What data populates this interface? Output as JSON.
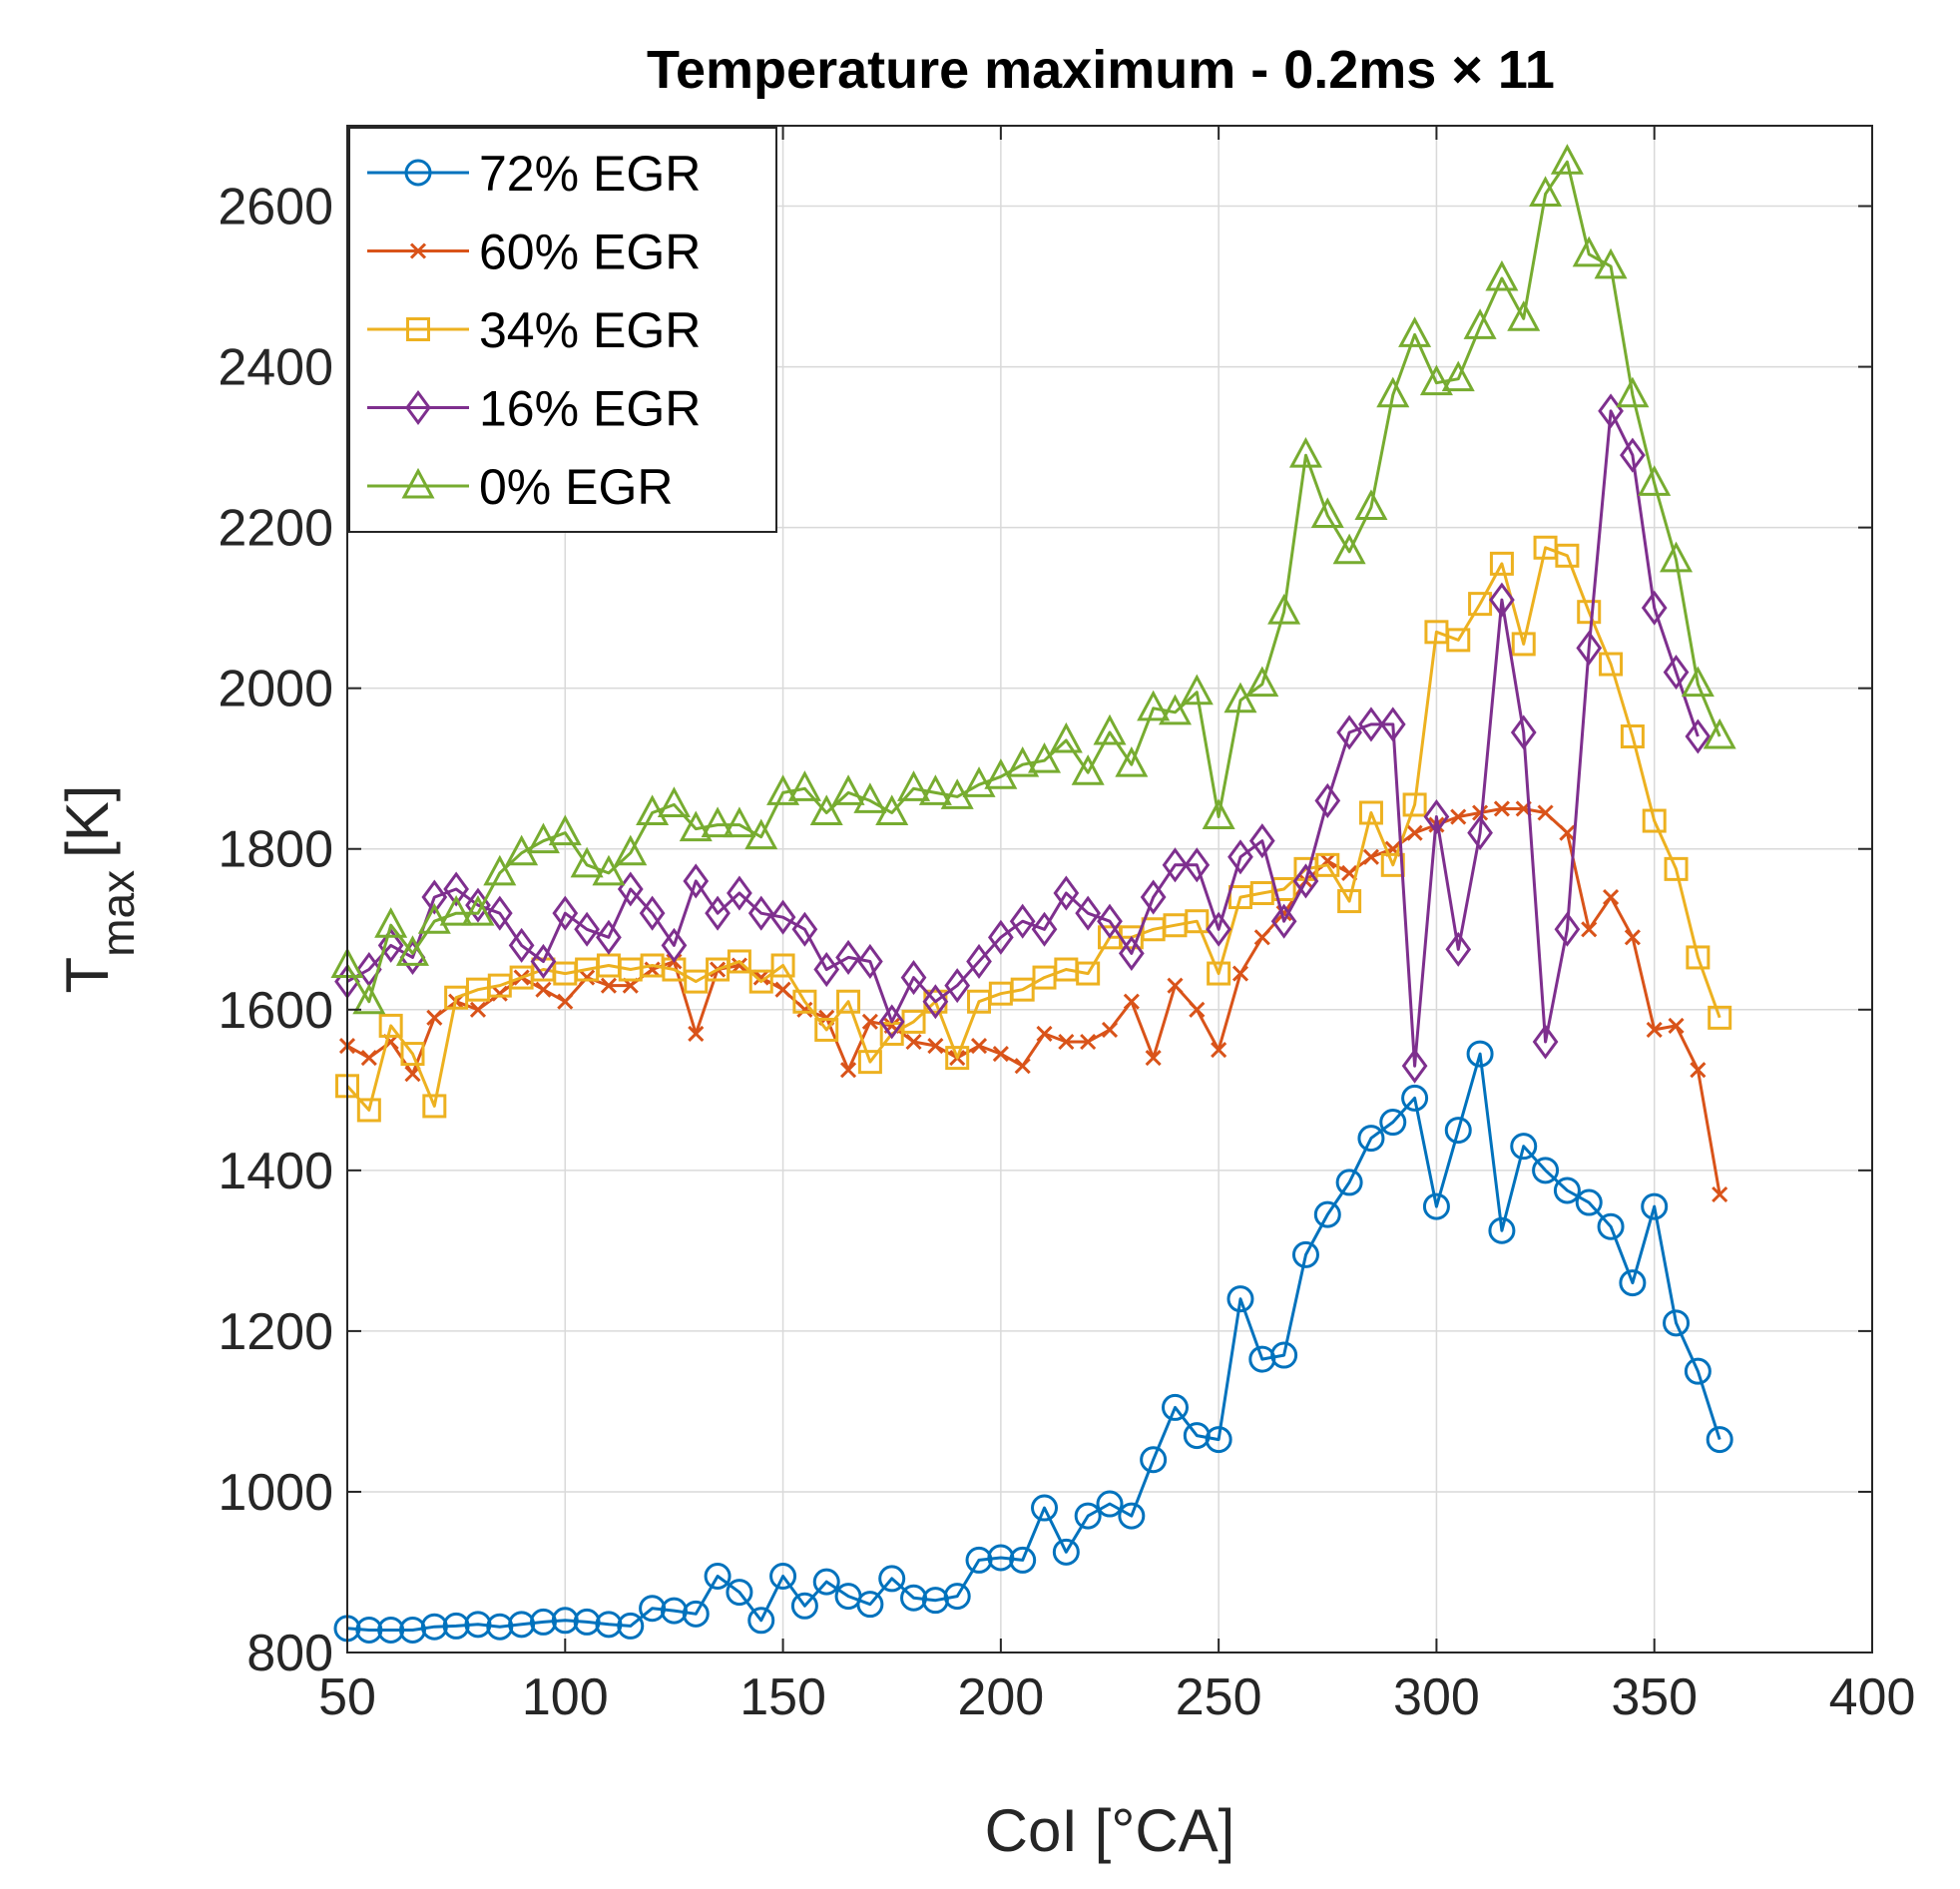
{
  "chart_data": {
    "type": "line",
    "title": "Temperature maximum - 0.2ms × 11",
    "xlabel": "CoI [°CA]",
    "ylabel_main": "T",
    "ylabel_sub": "max",
    "ylabel_unit": "[K]",
    "xlim": [
      50,
      400
    ],
    "ylim": [
      800,
      2700
    ],
    "xticks": [
      50,
      100,
      150,
      200,
      250,
      300,
      350,
      400
    ],
    "yticks": [
      800,
      1000,
      1200,
      1400,
      1600,
      1800,
      2000,
      2200,
      2400,
      2600
    ],
    "grid": true,
    "legend_location": "top-left",
    "x": [
      50,
      55,
      60,
      65,
      70,
      75,
      80,
      85,
      90,
      95,
      100,
      105,
      110,
      115,
      120,
      125,
      130,
      135,
      140,
      145,
      150,
      155,
      160,
      165,
      170,
      175,
      180,
      185,
      190,
      195,
      200,
      205,
      210,
      215,
      220,
      225,
      230,
      235,
      240,
      245,
      250,
      255,
      260,
      265,
      270,
      275,
      280,
      285,
      290,
      295,
      300,
      305,
      310,
      315,
      320,
      325,
      330,
      335,
      340,
      345,
      350,
      355,
      360,
      365
    ],
    "series": [
      {
        "name": "72% EGR",
        "color": "#0072BD",
        "marker": "circle",
        "values": [
          830,
          828,
          828,
          828,
          832,
          833,
          835,
          832,
          835,
          838,
          840,
          838,
          835,
          833,
          855,
          852,
          848,
          895,
          875,
          840,
          895,
          858,
          888,
          870,
          860,
          892,
          868,
          865,
          870,
          915,
          918,
          915,
          980,
          925,
          970,
          985,
          970,
          1040,
          1105,
          1070,
          1065,
          1240,
          1165,
          1170,
          1295,
          1345,
          1385,
          1440,
          1460,
          1490,
          1355,
          1450,
          1545,
          1325,
          1430,
          1400,
          1375,
          1360,
          1330,
          1260,
          1355,
          1210,
          1150,
          1065
        ]
      },
      {
        "name": "60% EGR",
        "color": "#D95319",
        "marker": "x",
        "values": [
          1555,
          1540,
          1560,
          1520,
          1590,
          1610,
          1600,
          1620,
          1640,
          1625,
          1610,
          1640,
          1630,
          1630,
          1650,
          1660,
          1570,
          1650,
          1655,
          1640,
          1625,
          1600,
          1590,
          1525,
          1585,
          1580,
          1560,
          1555,
          1540,
          1555,
          1545,
          1530,
          1570,
          1560,
          1560,
          1575,
          1610,
          1540,
          1630,
          1600,
          1550,
          1645,
          1690,
          1720,
          1760,
          1785,
          1770,
          1790,
          1800,
          1820,
          1830,
          1840,
          1845,
          1850,
          1850,
          1845,
          1820,
          1700,
          1740,
          1690,
          1575,
          1580,
          1525,
          1370
        ]
      },
      {
        "name": "34% EGR",
        "color": "#EDB120",
        "marker": "square",
        "values": [
          1505,
          1475,
          1580,
          1545,
          1480,
          1615,
          1625,
          1630,
          1640,
          1650,
          1645,
          1650,
          1655,
          1650,
          1655,
          1650,
          1635,
          1650,
          1660,
          1635,
          1655,
          1610,
          1575,
          1610,
          1535,
          1570,
          1585,
          1610,
          1540,
          1610,
          1620,
          1625,
          1640,
          1650,
          1645,
          1690,
          1690,
          1700,
          1705,
          1710,
          1645,
          1740,
          1745,
          1750,
          1775,
          1780,
          1735,
          1845,
          1780,
          1855,
          2070,
          2060,
          2105,
          2155,
          2055,
          2175,
          2165,
          2095,
          2030,
          1940,
          1835,
          1775,
          1665,
          1590
        ]
      },
      {
        "name": "16% EGR",
        "color": "#7E2F8E",
        "marker": "diamond",
        "values": [
          1635,
          1650,
          1680,
          1665,
          1740,
          1750,
          1730,
          1720,
          1680,
          1660,
          1720,
          1700,
          1690,
          1750,
          1720,
          1680,
          1760,
          1720,
          1745,
          1720,
          1715,
          1700,
          1650,
          1665,
          1660,
          1585,
          1640,
          1610,
          1630,
          1660,
          1690,
          1710,
          1700,
          1745,
          1720,
          1710,
          1670,
          1740,
          1780,
          1780,
          1700,
          1790,
          1810,
          1710,
          1760,
          1860,
          1945,
          1955,
          1955,
          1530,
          1840,
          1675,
          1820,
          2110,
          1945,
          1560,
          1700,
          2050,
          2345,
          2290,
          2100,
          2020,
          1940,
          null
        ]
      },
      {
        "name": "0% EGR",
        "color": "#77AC30",
        "marker": "triangle",
        "values": [
          1655,
          1610,
          1705,
          1670,
          1710,
          1720,
          1720,
          1770,
          1795,
          1810,
          1820,
          1780,
          1770,
          1795,
          1845,
          1855,
          1825,
          1830,
          1830,
          1815,
          1870,
          1875,
          1845,
          1870,
          1860,
          1845,
          1875,
          1870,
          1865,
          1880,
          1890,
          1905,
          1910,
          1935,
          1895,
          1945,
          1905,
          1975,
          1970,
          1995,
          1840,
          1985,
          2005,
          2095,
          2290,
          2215,
          2170,
          2225,
          2365,
          2440,
          2380,
          2385,
          2450,
          2510,
          2460,
          2615,
          2655,
          2540,
          2525,
          2365,
          2255,
          2160,
          2005,
          1940
        ]
      }
    ]
  }
}
